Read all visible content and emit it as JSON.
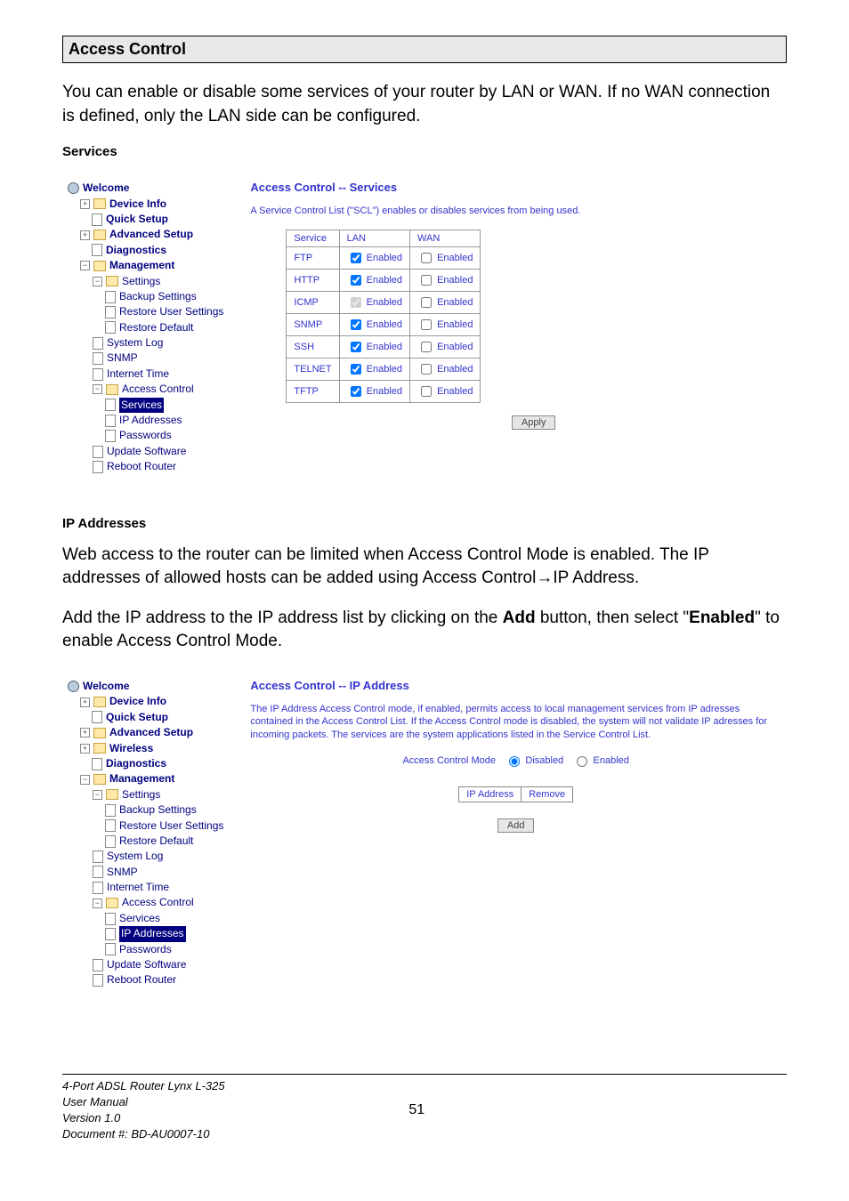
{
  "section": {
    "title": "Access Control"
  },
  "intro": "You can enable or disable some services of your router by LAN or WAN. If no WAN connection is defined, only the LAN side can be configured.",
  "servicesHead": "Services",
  "screenshot1": {
    "header": "Access Control -- Services",
    "desc": "A Service Control List (\"SCL\") enables or disables services from being used.",
    "tree": {
      "welcome": "Welcome",
      "deviceInfo": "Device Info",
      "quickSetup": "Quick Setup",
      "advancedSetup": "Advanced Setup",
      "diagnostics": "Diagnostics",
      "management": "Management",
      "settings": "Settings",
      "backupSettings": "Backup Settings",
      "restoreUser": "Restore User Settings",
      "restoreDefault": "Restore Default",
      "systemLog": "System Log",
      "snmp": "SNMP",
      "internetTime": "Internet Time",
      "accessControl": "Access Control",
      "services": "Services",
      "ipAddresses": "IP Addresses",
      "passwords": "Passwords",
      "updateSoftware": "Update Software",
      "rebootRouter": "Reboot Router"
    },
    "table": {
      "head": {
        "service": "Service",
        "lan": "LAN",
        "wan": "WAN"
      },
      "en": "Enabled",
      "rows": [
        {
          "s": "FTP",
          "lan": true,
          "wan": false
        },
        {
          "s": "HTTP",
          "lan": true,
          "wan": false
        },
        {
          "s": "ICMP",
          "lan": true,
          "wan": false,
          "lanDisabled": true
        },
        {
          "s": "SNMP",
          "lan": true,
          "wan": false
        },
        {
          "s": "SSH",
          "lan": true,
          "wan": false
        },
        {
          "s": "TELNET",
          "lan": true,
          "wan": false
        },
        {
          "s": "TFTP",
          "lan": true,
          "wan": false
        }
      ],
      "apply": "Apply"
    }
  },
  "ipHead": "IP Addresses",
  "ipIntro1": "Web access to the router can be limited when Access Control Mode is enabled. The IP addresses of allowed hosts can be added using Access Control→IP Address.",
  "ipIntro2a": "Add the IP address to the IP address list by clicking on the ",
  "ipIntro2b": "Add",
  "ipIntro2c": " button, then select \"",
  "ipIntro2d": "Enabled",
  "ipIntro2e": "\" to enable Access Control Mode.",
  "screenshot2": {
    "header": "Access Control -- IP Address",
    "desc": "The IP Address Access Control mode, if enabled, permits access to local management services from IP adresses contained in the Access Control List. If the Access Control mode is disabled, the system will not validate IP adresses for incoming packets. The services are the system applications listed in the Service Control List.",
    "mode": "Access Control Mode",
    "disabled": "Disabled",
    "enabled": "Enabled",
    "ipaddress": "IP Address",
    "remove": "Remove",
    "add": "Add",
    "tree": {
      "wireless": "Wireless"
    }
  },
  "footer": {
    "l1": "4-Port ADSL Router Lynx L-325",
    "l2": "User Manual",
    "l3": "Version 1.0",
    "l4": "Document #:  BD-AU0007-10",
    "page": "51"
  }
}
